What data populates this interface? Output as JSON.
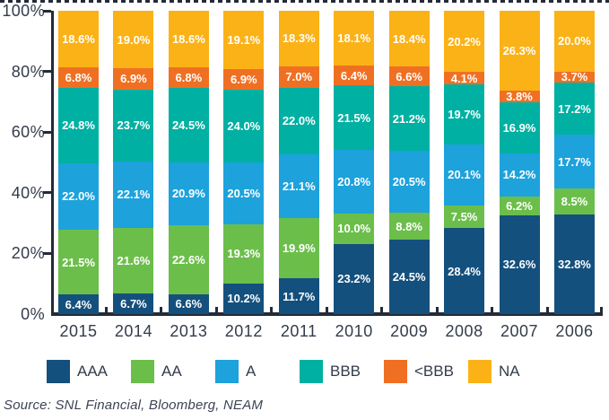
{
  "chart_data": {
    "type": "bar",
    "stacked": true,
    "percent_of_total": true,
    "categories": [
      "2015",
      "2014",
      "2013",
      "2012",
      "2011",
      "2010",
      "2009",
      "2008",
      "2007",
      "2006"
    ],
    "series": [
      {
        "name": "AAA",
        "color": "#14507d",
        "values": [
          6.4,
          6.7,
          6.6,
          10.2,
          11.7,
          23.2,
          24.5,
          28.4,
          32.6,
          32.8
        ]
      },
      {
        "name": "AA",
        "color": "#6cbe4b",
        "values": [
          21.5,
          21.6,
          22.6,
          19.3,
          19.9,
          10.0,
          8.8,
          7.5,
          6.2,
          8.5
        ]
      },
      {
        "name": "A",
        "color": "#1da2dc",
        "values": [
          22.0,
          22.1,
          20.9,
          20.5,
          21.1,
          20.8,
          20.5,
          20.1,
          14.2,
          17.7
        ]
      },
      {
        "name": "BBB",
        "color": "#00b0a2",
        "values": [
          24.8,
          23.7,
          24.5,
          24.0,
          22.0,
          21.5,
          21.2,
          19.7,
          16.9,
          17.2
        ]
      },
      {
        "name": "<BBB",
        "color": "#f07023",
        "values": [
          6.8,
          6.9,
          6.8,
          6.9,
          7.0,
          6.4,
          6.6,
          4.1,
          3.8,
          3.7
        ]
      },
      {
        "name": "NA",
        "color": "#fbb217",
        "values": [
          18.6,
          19.0,
          18.6,
          19.1,
          18.3,
          18.1,
          18.4,
          20.2,
          26.3,
          20.0
        ]
      }
    ],
    "y_axis": {
      "ticks": [
        100,
        80,
        60,
        40,
        20,
        0
      ],
      "unit": "%",
      "range": [
        0,
        100
      ]
    },
    "legend_position": "bottom",
    "grid": false,
    "value_label_format": "one-decimal-percent",
    "source": "Source: SNL Financial, Bloomberg, NEAM",
    "style": {
      "axis_color": "#232a38",
      "text_color": "#333c4b",
      "value_label_color": "#ffffff",
      "source_color": "#3c4454"
    }
  }
}
